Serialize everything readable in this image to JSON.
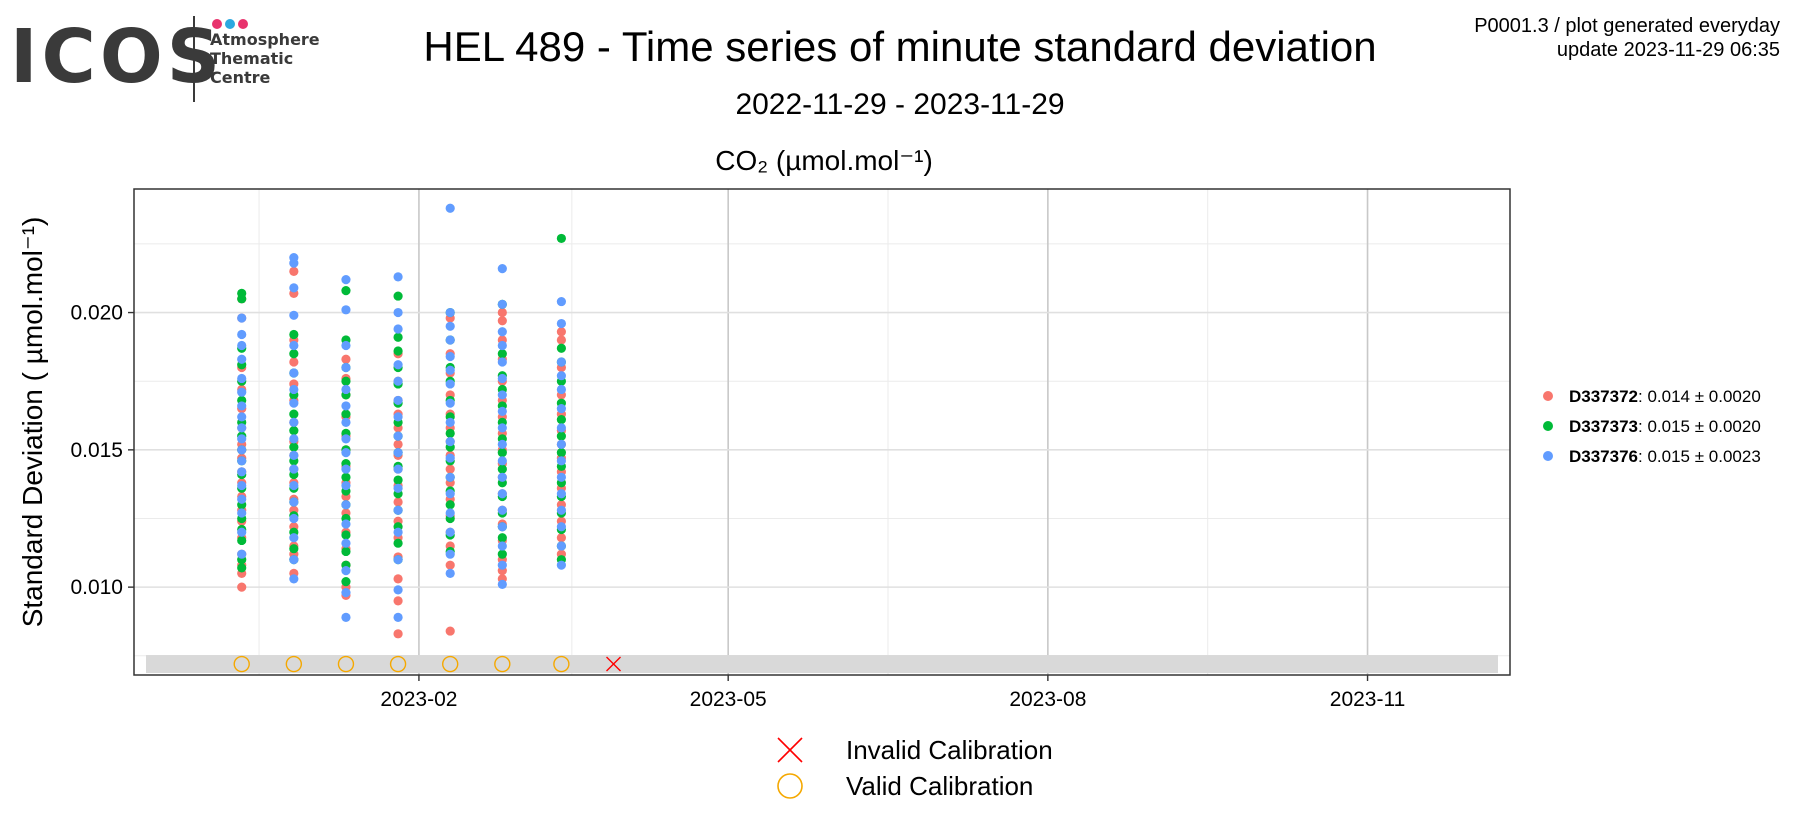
{
  "logo": {
    "text": "ICOS",
    "sub_line1": "Atmosphere",
    "sub_line2": "Thematic",
    "sub_line3": "Centre",
    "dot_colors": [
      "#e8336d",
      "#2aa8e0",
      "#e8336d"
    ]
  },
  "header": {
    "title": "HEL 489 - Time series of minute standard deviation",
    "subtitle": "2022-11-29 - 2023-11-29",
    "meta_line1": "P0001.3 / plot generated everyday",
    "meta_line2": "update  2023-11-29 06:35"
  },
  "chart_data": {
    "type": "scatter",
    "panel_title": "CO₂ (µmol.mol⁻¹)",
    "ylabel": "Standard Deviation ( µmol.mol⁻¹)",
    "xlabel": "",
    "xlim": [
      "2022-11-11",
      "2023-12-12"
    ],
    "ylim": [
      0.0068,
      0.0245
    ],
    "x_ticks": [
      "2023-02-01",
      "2023-05-01",
      "2023-08-01",
      "2023-11-01"
    ],
    "x_tick_labels": [
      "2023-02",
      "2023-05",
      "2023-08",
      "2023-11"
    ],
    "y_ticks": [
      0.01,
      0.015,
      0.02
    ],
    "y_tick_labels": [
      "0.010",
      "0.015",
      "0.020"
    ],
    "grid": true,
    "legend_position": "right",
    "series": [
      {
        "name": "D337372",
        "stat": "0.014 ± 0.0020",
        "color": "#f8766d",
        "points": [
          {
            "date": "2022-12-12",
            "values": [
              0.01,
              0.0105,
              0.0108,
              0.0112,
              0.0118,
              0.0124,
              0.0128,
              0.0133,
              0.0138,
              0.0142,
              0.0147,
              0.015,
              0.0152,
              0.0158,
              0.0165,
              0.0172,
              0.018,
              0.0198,
              0.0205
            ]
          },
          {
            "date": "2022-12-27",
            "values": [
              0.0105,
              0.0112,
              0.0115,
              0.0122,
              0.0128,
              0.0132,
              0.0138,
              0.0143,
              0.0148,
              0.0153,
              0.016,
              0.0168,
              0.0174,
              0.0182,
              0.019,
              0.0207,
              0.0215
            ]
          },
          {
            "date": "2023-01-11",
            "values": [
              0.0097,
              0.01,
              0.0108,
              0.0114,
              0.012,
              0.0127,
              0.0133,
              0.0138,
              0.0144,
              0.015,
              0.0155,
              0.0162,
              0.017,
              0.0176,
              0.0183
            ]
          },
          {
            "date": "2023-01-26",
            "values": [
              0.0083,
              0.0095,
              0.0103,
              0.0111,
              0.0118,
              0.0124,
              0.0131,
              0.0137,
              0.0143,
              0.0148,
              0.0152,
              0.0158,
              0.0163,
              0.0168,
              0.0175,
              0.0185
            ]
          },
          {
            "date": "2023-02-10",
            "values": [
              0.0084,
              0.0108,
              0.0115,
              0.012,
              0.0126,
              0.0132,
              0.0138,
              0.0143,
              0.0148,
              0.0153,
              0.0158,
              0.0163,
              0.017,
              0.0178,
              0.0185,
              0.0198
            ]
          },
          {
            "date": "2023-02-25",
            "values": [
              0.0103,
              0.0106,
              0.011,
              0.0117,
              0.0123,
              0.0128,
              0.0134,
              0.014,
              0.0145,
              0.015,
              0.0156,
              0.0162,
              0.0168,
              0.0175,
              0.0183,
              0.019,
              0.0197,
              0.02
            ]
          },
          {
            "date": "2023-03-14",
            "values": [
              0.0112,
              0.0118,
              0.0124,
              0.013,
              0.0136,
              0.0142,
              0.0147,
              0.0152,
              0.0157,
              0.0163,
              0.017,
              0.018,
              0.019,
              0.0193
            ]
          }
        ]
      },
      {
        "name": "D337373",
        "stat": "0.015 ± 0.0020",
        "color": "#00ba38",
        "points": [
          {
            "date": "2022-12-12",
            "values": [
              0.0107,
              0.011,
              0.0117,
              0.0121,
              0.0125,
              0.013,
              0.0136,
              0.0141,
              0.0146,
              0.015,
              0.0155,
              0.016,
              0.0168,
              0.0175,
              0.0181,
              0.0187,
              0.0205,
              0.0207
            ]
          },
          {
            "date": "2022-12-27",
            "values": [
              0.011,
              0.0114,
              0.012,
              0.0126,
              0.0131,
              0.0136,
              0.0141,
              0.0146,
              0.0151,
              0.0157,
              0.0163,
              0.017,
              0.0178,
              0.0185,
              0.0192
            ]
          },
          {
            "date": "2023-01-11",
            "values": [
              0.0102,
              0.0108,
              0.0113,
              0.0119,
              0.0125,
              0.013,
              0.0135,
              0.014,
              0.0145,
              0.015,
              0.0156,
              0.0163,
              0.017,
              0.0175,
              0.018,
              0.019,
              0.0208
            ]
          },
          {
            "date": "2023-01-26",
            "values": [
              0.011,
              0.0116,
              0.0122,
              0.0128,
              0.0134,
              0.0139,
              0.0144,
              0.0149,
              0.0155,
              0.016,
              0.0167,
              0.0174,
              0.018,
              0.0186,
              0.0191,
              0.0206
            ]
          },
          {
            "date": "2023-02-10",
            "values": [
              0.0113,
              0.0119,
              0.0125,
              0.013,
              0.0135,
              0.014,
              0.0146,
              0.0151,
              0.0156,
              0.0162,
              0.0168,
              0.0175,
              0.018,
              0.019,
              0.02
            ]
          },
          {
            "date": "2023-02-25",
            "values": [
              0.0112,
              0.0118,
              0.0122,
              0.0127,
              0.0133,
              0.0138,
              0.0143,
              0.0149,
              0.0154,
              0.016,
              0.0166,
              0.0172,
              0.0177,
              0.0185,
              0.0203
            ]
          },
          {
            "date": "2023-03-14",
            "values": [
              0.011,
              0.0115,
              0.0121,
              0.0127,
              0.0133,
              0.0138,
              0.0144,
              0.0149,
              0.0155,
              0.0161,
              0.0167,
              0.0175,
              0.0182,
              0.0187,
              0.0227
            ]
          }
        ]
      },
      {
        "name": "D337376",
        "stat": "0.015 ± 0.0023",
        "color": "#619cff",
        "points": [
          {
            "date": "2022-12-12",
            "values": [
              0.0112,
              0.012,
              0.0127,
              0.0132,
              0.0137,
              0.0142,
              0.0146,
              0.015,
              0.0154,
              0.0158,
              0.0162,
              0.0166,
              0.0171,
              0.0176,
              0.0183,
              0.0188,
              0.0192,
              0.0198
            ]
          },
          {
            "date": "2022-12-27",
            "values": [
              0.0103,
              0.011,
              0.0118,
              0.0125,
              0.0131,
              0.0137,
              0.0143,
              0.0148,
              0.0154,
              0.016,
              0.0167,
              0.0172,
              0.0178,
              0.0188,
              0.0199,
              0.0209,
              0.0218,
              0.022
            ]
          },
          {
            "date": "2023-01-11",
            "values": [
              0.0089,
              0.0098,
              0.0106,
              0.0116,
              0.0123,
              0.013,
              0.0137,
              0.0143,
              0.0149,
              0.0154,
              0.016,
              0.0166,
              0.0172,
              0.018,
              0.0188,
              0.0201,
              0.0212
            ]
          },
          {
            "date": "2023-01-26",
            "values": [
              0.0089,
              0.0099,
              0.011,
              0.012,
              0.0128,
              0.0136,
              0.0143,
              0.0149,
              0.0155,
              0.0162,
              0.0168,
              0.0175,
              0.0181,
              0.0194,
              0.02,
              0.0213
            ]
          },
          {
            "date": "2023-02-10",
            "values": [
              0.0105,
              0.0112,
              0.012,
              0.0127,
              0.0134,
              0.014,
              0.0147,
              0.0153,
              0.016,
              0.0167,
              0.0174,
              0.0179,
              0.0184,
              0.019,
              0.0195,
              0.02,
              0.0238
            ]
          },
          {
            "date": "2023-02-25",
            "values": [
              0.0101,
              0.0108,
              0.0115,
              0.0122,
              0.0128,
              0.0134,
              0.014,
              0.0146,
              0.0152,
              0.0158,
              0.0164,
              0.017,
              0.0176,
              0.0182,
              0.0188,
              0.0193,
              0.0203,
              0.0216
            ]
          },
          {
            "date": "2023-03-14",
            "values": [
              0.0108,
              0.0115,
              0.0122,
              0.0128,
              0.0134,
              0.014,
              0.0146,
              0.0152,
              0.0158,
              0.0165,
              0.0172,
              0.0177,
              0.0182,
              0.0196,
              0.0204
            ]
          }
        ]
      }
    ],
    "calibrations": {
      "y": 0.0072,
      "valid": [
        "2022-12-12",
        "2022-12-27",
        "2023-01-11",
        "2023-01-26",
        "2023-02-10",
        "2023-02-25",
        "2023-03-14"
      ],
      "invalid": [
        "2023-03-29"
      ],
      "valid_color": "#f5a800",
      "invalid_color": "#ff0000",
      "band_color": "#d9d9d9"
    },
    "calibration_legend": {
      "invalid_label": "Invalid Calibration",
      "valid_label": "Valid Calibration"
    }
  }
}
